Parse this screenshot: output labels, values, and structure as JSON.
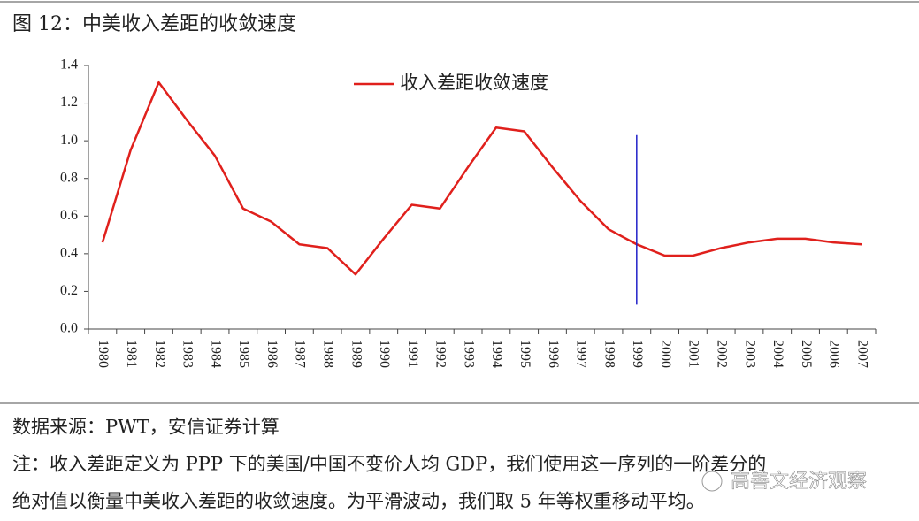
{
  "chart_data": {
    "type": "line",
    "title": "图 12：中美收入差距的收敛速度",
    "categories": [
      "1980",
      "1981",
      "1982",
      "1983",
      "1984",
      "1985",
      "1986",
      "1987",
      "1988",
      "1989",
      "1990",
      "1991",
      "1992",
      "1993",
      "1994",
      "1995",
      "1996",
      "1997",
      "1998",
      "1999",
      "2000",
      "2001",
      "2002",
      "2003",
      "2004",
      "2005",
      "2006",
      "2007"
    ],
    "series": [
      {
        "name": "收入差距收敛速度",
        "color": "#e0201c",
        "values": [
          0.46,
          0.95,
          1.31,
          1.11,
          0.92,
          0.64,
          0.57,
          0.45,
          0.43,
          0.29,
          0.48,
          0.66,
          0.64,
          0.86,
          1.07,
          1.05,
          0.86,
          0.68,
          0.53,
          0.45,
          0.39,
          0.39,
          0.43,
          0.46,
          0.48,
          0.48,
          0.46,
          0.45
        ]
      }
    ],
    "ylim": [
      0,
      1.4
    ],
    "yticks": [
      {
        "value": 0,
        "label": "0.0"
      },
      0.2,
      0.4,
      0.6,
      0.8,
      {
        "value": 1,
        "label": "1.0"
      },
      1.2,
      1.4
    ],
    "vline": {
      "category": "1999",
      "from": 0.13,
      "to": 1.03,
      "color": "#2020c8"
    },
    "legend": "top",
    "source": "数据来源：PWT，安信证券计算",
    "note": [
      "注：收入差距定义为 PPP 下的美国/中国不变价人均 GDP，我们使用这一序列的一阶差分的",
      "绝对值以衡量中美收入差距的收敛速度。为平滑波动，我们取 5 年等权重移动平均。"
    ],
    "watermark": "高善文经济观察"
  }
}
